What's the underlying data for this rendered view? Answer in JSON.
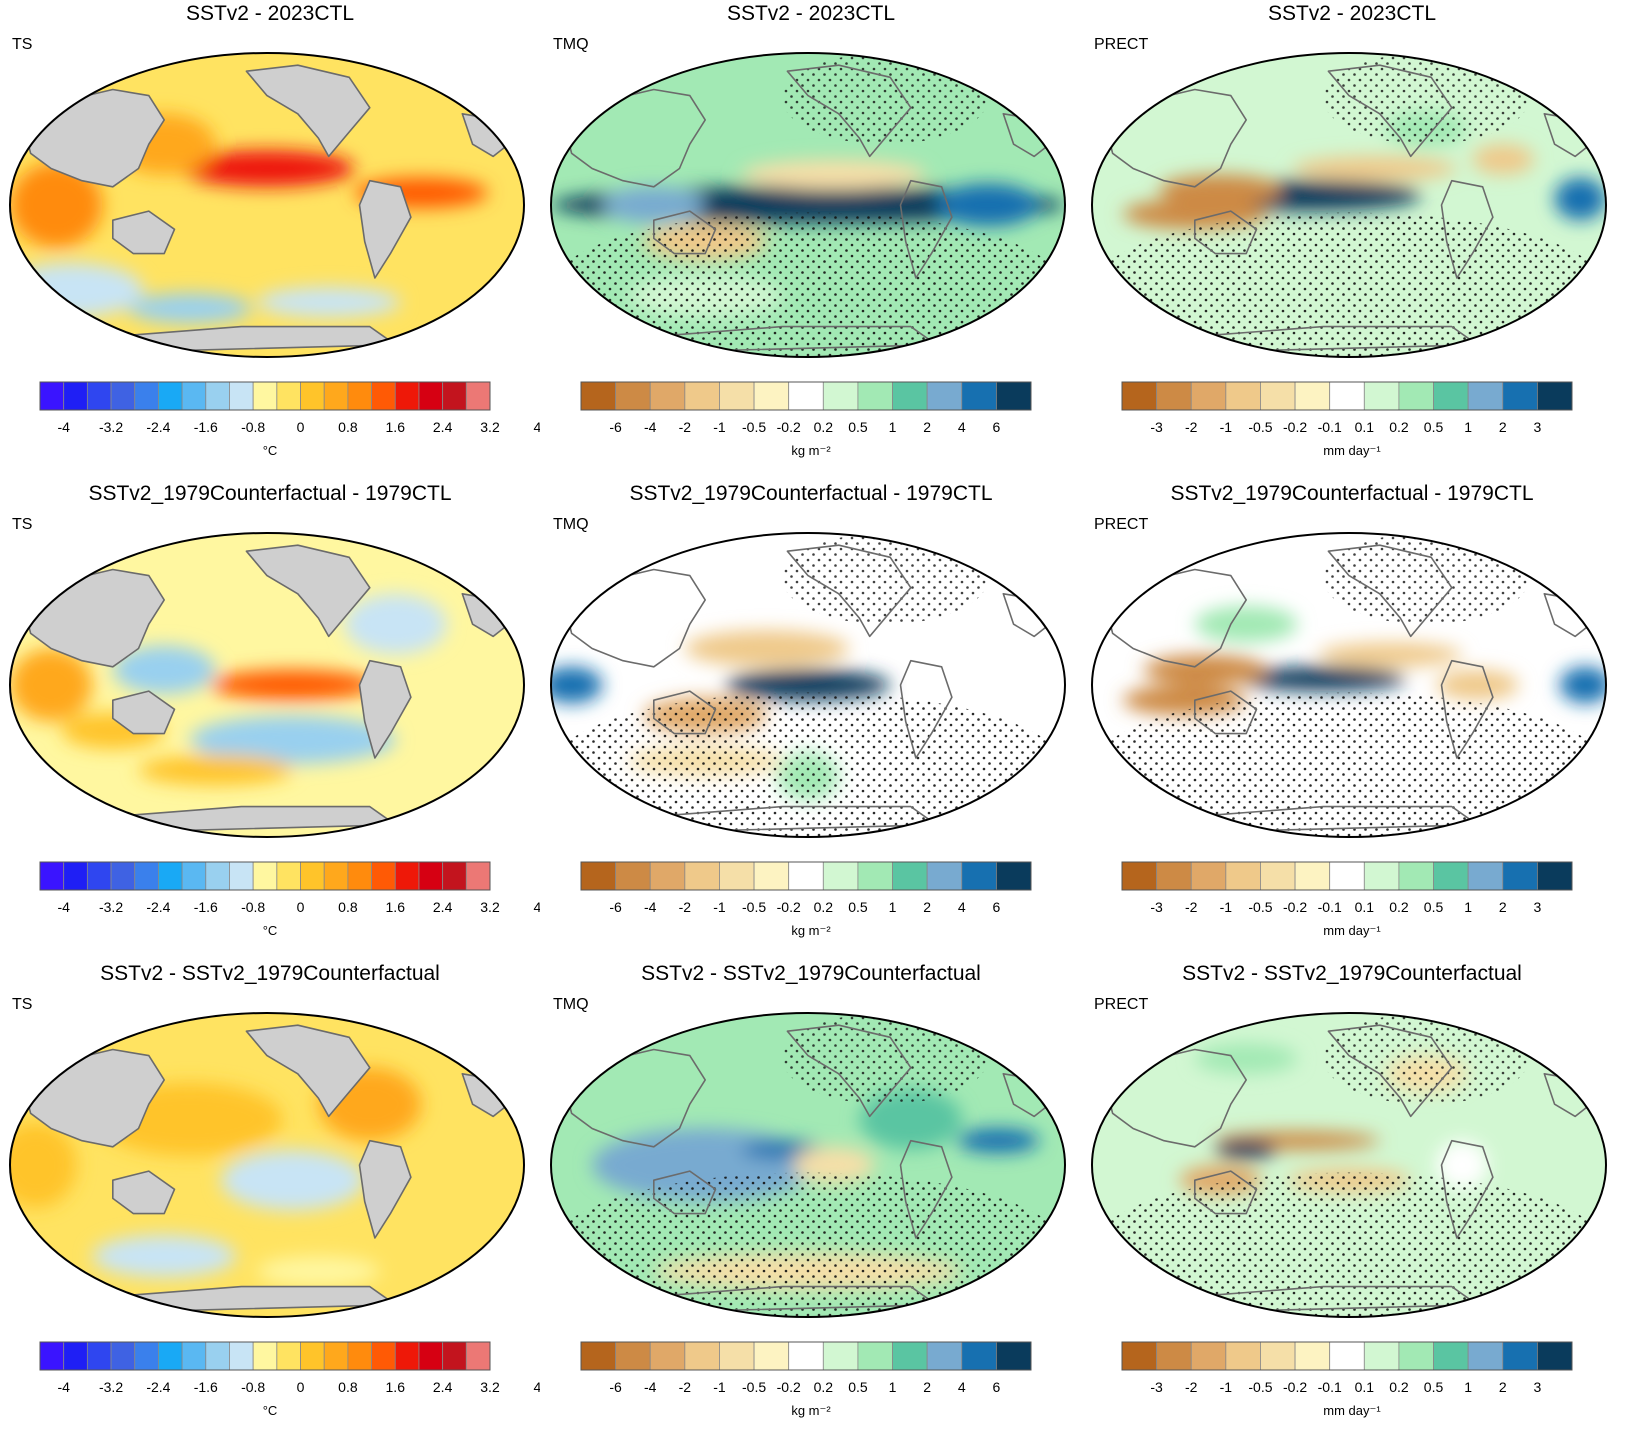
{
  "palettes": {
    "ts": [
      "#3a14ff",
      "#1f1ff5",
      "#2f46f0",
      "#3f62e3",
      "#3a80ec",
      "#19a9f5",
      "#5ab8f2",
      "#99d0ef",
      "#c8e4f5",
      "#fff7a0",
      "#ffe361",
      "#ffc42a",
      "#ffa81c",
      "#ff8b0d",
      "#ff5a05",
      "#ee1808",
      "#d60012",
      "#c3141e",
      "#ec7875"
    ],
    "tmq": [
      "#b5651d",
      "#cd8a45",
      "#e0a868",
      "#efc98a",
      "#f5dfa8",
      "#fdf3c2",
      "#ffffff",
      "#d2f7d2",
      "#a2e9b4",
      "#5ac5a2",
      "#78aad0",
      "#1770b0",
      "#0a3b5c"
    ],
    "prect": [
      "#b5651d",
      "#cd8a45",
      "#e0a868",
      "#efc98a",
      "#f5dfa8",
      "#fdf3c2",
      "#ffffff",
      "#d2f7d2",
      "#a2e9b4",
      "#5ac5a2",
      "#78aad0",
      "#1770b0",
      "#0a3b5c"
    ]
  },
  "colorbars": {
    "ts": {
      "ticks": [
        "-4",
        "-3.2",
        "-2.4",
        "-1.6",
        "-0.8",
        "0",
        "0.8",
        "1.6",
        "2.4",
        "3.2",
        "4"
      ],
      "unit": "°C"
    },
    "tmq": {
      "ticks": [
        "-6",
        "-4",
        "-2",
        "-1",
        "-0.5",
        "-0.2",
        "0.2",
        "0.5",
        "1",
        "2",
        "4",
        "6"
      ],
      "unit": "kg m⁻²"
    },
    "prect": {
      "ticks": [
        "-3",
        "-2",
        "-1",
        "-0.5",
        "-0.2",
        "-0.1",
        "0.1",
        "0.2",
        "0.5",
        "1",
        "2",
        "3"
      ],
      "unit": "mm day⁻¹"
    }
  },
  "panels": [
    {
      "title": "SSTv2 - 2023CTL",
      "var": "TS",
      "bar": "ts",
      "land_gray": true,
      "base": 10,
      "anoms": [
        [
          0.5,
          0.38,
          0.17,
          0.06,
          5,
          15
        ],
        [
          0.8,
          0.46,
          0.13,
          0.05,
          5,
          14
        ],
        [
          0.09,
          0.5,
          0.09,
          0.14,
          5,
          13
        ],
        [
          0.12,
          0.78,
          0.14,
          0.09,
          -1,
          8
        ],
        [
          0.35,
          0.84,
          0.12,
          0.05,
          -1,
          7
        ],
        [
          0.62,
          0.82,
          0.14,
          0.05,
          -1,
          8
        ],
        [
          0.3,
          0.3,
          0.1,
          0.1,
          5,
          12
        ]
      ]
    },
    {
      "title": "SSTv2 - 2023CTL",
      "var": "TMQ",
      "bar": "tmq",
      "dots": true,
      "base": 8,
      "anoms": [
        [
          0.5,
          0.5,
          0.5,
          0.06,
          0,
          12
        ],
        [
          0.3,
          0.62,
          0.12,
          0.06,
          0,
          3
        ],
        [
          0.55,
          0.4,
          0.18,
          0.05,
          0,
          4
        ],
        [
          0.2,
          0.5,
          0.1,
          0.06,
          0,
          10
        ],
        [
          0.85,
          0.5,
          0.1,
          0.07,
          0,
          11
        ],
        [
          0.3,
          0.8,
          0.15,
          0.07,
          0,
          7
        ]
      ]
    },
    {
      "title": "SSTv2 - 2023CTL",
      "var": "PRECT",
      "bar": "prect",
      "dots": true,
      "base": 7,
      "anoms": [
        [
          0.42,
          0.47,
          0.22,
          0.05,
          0,
          12
        ],
        [
          0.25,
          0.45,
          0.12,
          0.05,
          0,
          1
        ],
        [
          0.2,
          0.53,
          0.14,
          0.05,
          0,
          1
        ],
        [
          0.55,
          0.38,
          0.16,
          0.04,
          0,
          3
        ],
        [
          0.95,
          0.48,
          0.05,
          0.07,
          0,
          11
        ],
        [
          0.65,
          0.25,
          0.08,
          0.06,
          0,
          8
        ],
        [
          0.8,
          0.35,
          0.06,
          0.05,
          0,
          3
        ]
      ]
    },
    {
      "title": "SSTv2_1979Counterfactual - 1979CTL",
      "var": "TS",
      "bar": "ts",
      "land_gray": true,
      "base": 9,
      "anoms": [
        [
          0.55,
          0.5,
          0.16,
          0.05,
          9,
          14
        ],
        [
          0.3,
          0.45,
          0.1,
          0.08,
          9,
          7
        ],
        [
          0.55,
          0.68,
          0.2,
          0.08,
          9,
          7
        ],
        [
          0.4,
          0.78,
          0.15,
          0.05,
          9,
          11
        ],
        [
          0.75,
          0.3,
          0.1,
          0.1,
          9,
          8
        ],
        [
          0.08,
          0.5,
          0.08,
          0.12,
          9,
          12
        ],
        [
          0.2,
          0.65,
          0.1,
          0.06,
          9,
          11
        ]
      ]
    },
    {
      "title": "SSTv2_1979Counterfactual - 1979CTL",
      "var": "TMQ",
      "bar": "tmq",
      "dots": true,
      "base": 6,
      "anoms": [
        [
          0.5,
          0.5,
          0.16,
          0.05,
          0,
          12
        ],
        [
          0.3,
          0.6,
          0.12,
          0.06,
          0,
          2
        ],
        [
          0.42,
          0.38,
          0.16,
          0.06,
          0,
          3
        ],
        [
          0.04,
          0.5,
          0.06,
          0.06,
          0,
          11
        ],
        [
          0.3,
          0.75,
          0.15,
          0.05,
          0,
          4
        ],
        [
          0.5,
          0.8,
          0.06,
          0.08,
          0,
          8
        ]
      ]
    },
    {
      "title": "SSTv2_1979Counterfactual - 1979CTL",
      "var": "PRECT",
      "bar": "prect",
      "dots": true,
      "base": 6,
      "anoms": [
        [
          0.45,
          0.48,
          0.16,
          0.04,
          0,
          12
        ],
        [
          0.22,
          0.45,
          0.12,
          0.05,
          0,
          1
        ],
        [
          0.18,
          0.55,
          0.12,
          0.05,
          0,
          1
        ],
        [
          0.58,
          0.4,
          0.14,
          0.04,
          0,
          3
        ],
        [
          0.75,
          0.5,
          0.08,
          0.05,
          0,
          3
        ],
        [
          0.96,
          0.5,
          0.05,
          0.06,
          0,
          11
        ],
        [
          0.3,
          0.3,
          0.1,
          0.06,
          0,
          8
        ]
      ]
    },
    {
      "title": "SSTv2 - SSTv2_1979Counterfactual",
      "var": "TS",
      "bar": "ts",
      "land_gray": true,
      "base": 10,
      "anoms": [
        [
          0.35,
          0.35,
          0.18,
          0.12,
          0,
          11
        ],
        [
          0.7,
          0.3,
          0.1,
          0.12,
          0,
          12
        ],
        [
          0.55,
          0.55,
          0.14,
          0.1,
          0,
          8
        ],
        [
          0.3,
          0.8,
          0.14,
          0.07,
          0,
          8
        ],
        [
          0.6,
          0.85,
          0.12,
          0.05,
          0,
          9
        ],
        [
          0.05,
          0.5,
          0.08,
          0.14,
          0,
          11
        ]
      ]
    },
    {
      "title": "SSTv2 - SSTv2_1979Counterfactual",
      "var": "TMQ",
      "bar": "tmq",
      "dots": true,
      "base": 8,
      "anoms": [
        [
          0.3,
          0.5,
          0.22,
          0.12,
          0,
          10
        ],
        [
          0.45,
          0.45,
          0.08,
          0.03,
          0,
          11
        ],
        [
          0.55,
          0.5,
          0.08,
          0.06,
          0,
          4
        ],
        [
          0.87,
          0.42,
          0.08,
          0.04,
          0,
          11
        ],
        [
          0.5,
          0.85,
          0.3,
          0.06,
          0,
          4
        ],
        [
          0.7,
          0.35,
          0.1,
          0.1,
          0,
          9
        ]
      ]
    },
    {
      "title": "SSTv2 - SSTv2_1979Counterfactual",
      "var": "PRECT",
      "bar": "prect",
      "dots": true,
      "base": 7,
      "anoms": [
        [
          0.4,
          0.42,
          0.16,
          0.03,
          0,
          1
        ],
        [
          0.3,
          0.45,
          0.06,
          0.03,
          0,
          12
        ],
        [
          0.25,
          0.55,
          0.08,
          0.05,
          0,
          2
        ],
        [
          0.5,
          0.55,
          0.12,
          0.04,
          0,
          3
        ],
        [
          0.72,
          0.5,
          0.05,
          0.08,
          0,
          6
        ],
        [
          0.3,
          0.15,
          0.1,
          0.05,
          0,
          8
        ],
        [
          0.65,
          0.2,
          0.08,
          0.06,
          0,
          4
        ]
      ]
    }
  ]
}
